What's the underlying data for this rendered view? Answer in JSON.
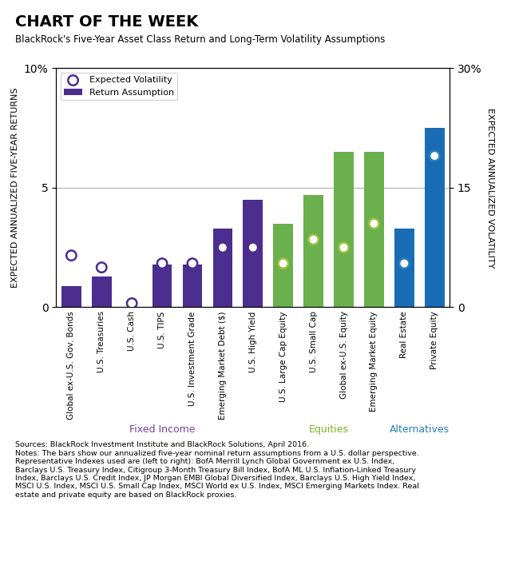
{
  "chart_data": {
    "type": "bar",
    "title": "CHART OF THE WEEK",
    "subtitle": "BlackRock's Five-Year Asset Class Return and Long-Term Volatility Assumptions",
    "categories": [
      "Global ex-U.S. Gov. Bonds",
      "U.S. Treasuries",
      "U.S. Cash",
      "U.S. TIPS",
      "U.S. Investment Grade",
      "Emerging Market Debt ($)",
      "U.S. High Yield",
      "U.S. Large Cap Equity",
      "U.S. Small Cap",
      "Global ex-U.S. Equity",
      "Emerging Market Equity",
      "Real Estate",
      "Private Equity"
    ],
    "series": [
      {
        "name": "Expected Volatility",
        "type": "scatter",
        "marker": "o",
        "axis": "y2",
        "colors": [
          "#4b2e8e",
          "#4b2e8e",
          "#4b2e8e",
          "#4b2e8e",
          "#4b2e8e",
          "#4b2e8e",
          "#4b2e8e",
          "#9dc040",
          "#9dc040",
          "#9dc040",
          "#9dc040",
          "#2980b9",
          "#2980b9"
        ],
        "values": [
          6.5,
          5.0,
          0.5,
          5.5,
          5.5,
          7.5,
          7.5,
          5.5,
          8.5,
          7.5,
          10.5,
          5.5,
          19.0
        ]
      },
      {
        "name": "Return Assumption",
        "type": "bar",
        "colors": [
          "#4b2e8e",
          "#4b2e8e",
          "#4b2e8e",
          "#4b2e8e",
          "#4b2e8e",
          "#4b2e8e",
          "#4b2e8e",
          "#6ab04c",
          "#6ab04c",
          "#6ab04c",
          "#6ab04c",
          "#1a6db5",
          "#1a6db5"
        ],
        "values": [
          0.9,
          1.3,
          0.0,
          1.8,
          1.8,
          3.3,
          4.5,
          3.5,
          4.7,
          6.5,
          6.5,
          3.3,
          7.5
        ]
      }
    ],
    "ylim": [
      0,
      10
    ],
    "yticks": [
      0,
      5,
      {
        "value": 10,
        "label": "10%"
      }
    ],
    "y2lim": [
      0,
      30
    ],
    "y2ticks": [
      0,
      15,
      {
        "value": 30,
        "label": "30%"
      }
    ],
    "ylabel": "EXPECTED ANNUALIZED FIVE-YEAR RETURNS",
    "y2label": "EXPECTED ANNUALIZED VOLATILITY",
    "groups": [
      {
        "label": "Fixed Income",
        "color": "#7b3fa0",
        "first": "Global ex-U.S. Gov. Bonds",
        "last": "U.S. High Yield"
      },
      {
        "label": "Equities",
        "color": "#7ab520",
        "first": "U.S. Large Cap Equity",
        "last": "Emerging Market Equity"
      },
      {
        "label": "Alternatives",
        "color": "#2980b9",
        "first": "Real Estate",
        "last": "Private Equity"
      }
    ],
    "footer": "Sources: BlackRock Investment Institute and BlackRock Solutions, April 2016.\nNotes: The bars show our annualized five-year nominal return assumptions from a U.S. dollar perspective.\nRepresentative Indexes used are (left to right): BofA Merrill Lynch Global Government ex U.S. Index,\nBarclays U.S. Treasury Index, Citigroup 3-Month Treasury Bill Index, BofA ML U.S. Inflation-Linked Treasury\nIndex, Barclays U.S. Credit Index, JP Morgan EMBI Global Diversified Index, Barclays U.S. High Yield Index,\nMSCI U.S. Index, MSCI U.S. Small Cap Index, MSCI World ex U.S. Index, MSCI Emerging Markets Index. Real\nestate and private equity are based on BlackRock proxies.",
    "legend": "upper left",
    "grid": true
  }
}
